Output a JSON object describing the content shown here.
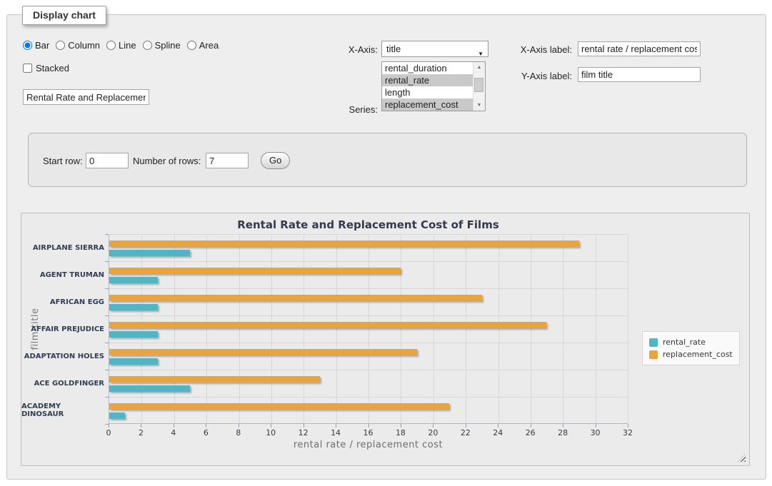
{
  "panel": {
    "legend": "Display chart"
  },
  "controls": {
    "chart_types": [
      {
        "label": "Bar",
        "selected": true
      },
      {
        "label": "Column",
        "selected": false
      },
      {
        "label": "Line",
        "selected": false
      },
      {
        "label": "Spline",
        "selected": false
      },
      {
        "label": "Area",
        "selected": false
      }
    ],
    "stacked": {
      "label": "Stacked",
      "checked": false
    },
    "chart_title_input": {
      "value": "Rental Rate and Replacement Cost of Films"
    },
    "x_axis": {
      "label": "X-Axis:",
      "selected": "title"
    },
    "series_select": {
      "label": "Series:",
      "options": [
        {
          "label": "rental_duration",
          "selected": false
        },
        {
          "label": "rental_rate",
          "selected": true
        },
        {
          "label": "length",
          "selected": false
        },
        {
          "label": "replacement_cost",
          "selected": true
        }
      ]
    },
    "x_axis_label": {
      "label": "X-Axis label:",
      "value": "rental rate / replacement cost"
    },
    "y_axis_label": {
      "label": "Y-Axis label:",
      "value": "film title"
    }
  },
  "row_controls": {
    "start_row_label": "Start row:",
    "start_row_value": "0",
    "number_of_rows_label": "Number of rows:",
    "number_of_rows_value": "7",
    "go_button": "Go"
  },
  "chart_data": {
    "type": "bar",
    "title": "Rental Rate and Replacement Cost of Films",
    "categories": [
      "AIRPLANE SIERRA",
      "AGENT TRUMAN",
      "AFRICAN EGG",
      "AFFAIR PREJUDICE",
      "ADAPTATION HOLES",
      "ACE GOLDFINGER",
      "ACADEMY DINOSAUR"
    ],
    "series": [
      {
        "name": "rental_rate",
        "color": "#55b4c4",
        "values": [
          4.99,
          2.99,
          2.99,
          2.99,
          2.99,
          4.99,
          0.99
        ]
      },
      {
        "name": "replacement_cost",
        "color": "#eba43c",
        "values": [
          28.99,
          17.99,
          22.99,
          26.99,
          18.99,
          12.99,
          20.99
        ]
      }
    ],
    "xlabel": "rental rate / replacement cost",
    "ylabel": "film title",
    "xlim": [
      0,
      32
    ],
    "tick_interval": 2,
    "grid": true,
    "legend_position": "middle-right",
    "bar_render_order": "last-series-on-top"
  }
}
